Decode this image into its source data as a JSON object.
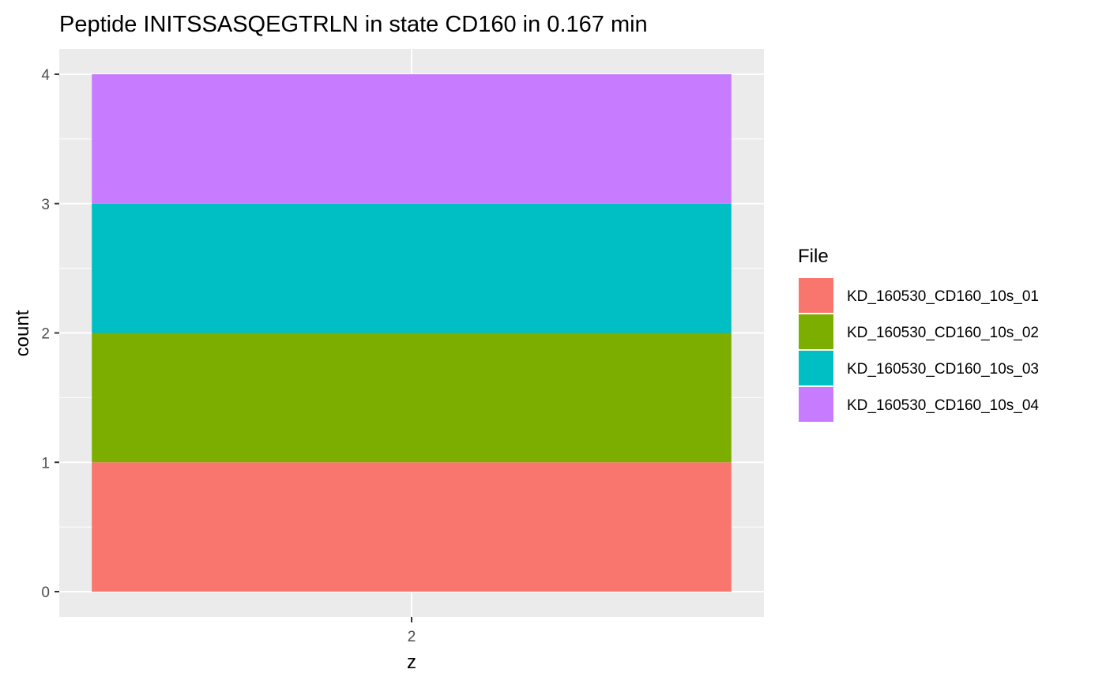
{
  "chart_data": {
    "type": "bar",
    "stacked": true,
    "title": "Peptide INITSSASQEGTRLN in state CD160 in 0.167 min",
    "xlabel": "z",
    "ylabel": "count",
    "categories": [
      "2"
    ],
    "ylim": [
      0,
      4
    ],
    "yticks": [
      "0",
      "1",
      "2",
      "3",
      "4"
    ],
    "grid": true,
    "legend": {
      "title": "File",
      "position": "right"
    },
    "series": [
      {
        "name": "KD_160530_CD160_10s_01",
        "values": [
          1
        ],
        "color": "#F8766D"
      },
      {
        "name": "KD_160530_CD160_10s_02",
        "values": [
          1
        ],
        "color": "#7CAE00"
      },
      {
        "name": "KD_160530_CD160_10s_03",
        "values": [
          1
        ],
        "color": "#00BFC4"
      },
      {
        "name": "KD_160530_CD160_10s_04",
        "values": [
          1
        ],
        "color": "#C77CFF"
      }
    ],
    "panel_background": "#EBEBEB",
    "grid_color": "#FFFFFF"
  }
}
